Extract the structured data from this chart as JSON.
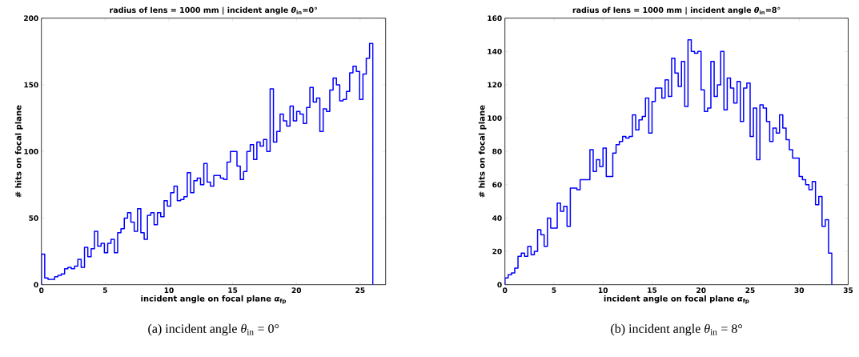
{
  "chart_data": [
    {
      "type": "histogram",
      "title": "radius of lens = 1000 mm | incident angle *θ*$_{in}$=0°",
      "xlabel": "incident angle on focal plane *α*$_{fp}$",
      "ylabel": "# hits on focal plane",
      "color": "#0000ff",
      "xlim": [
        0,
        27
      ],
      "ylim": [
        0,
        200
      ],
      "xticks": [
        0,
        5,
        10,
        15,
        20,
        25
      ],
      "yticks": [
        0,
        50,
        100,
        150,
        200
      ],
      "bins": [
        0,
        0.26,
        0.52,
        0.78,
        1.04,
        1.3,
        1.56,
        1.82,
        2.08,
        2.34,
        2.6,
        2.86,
        3.12,
        3.38,
        3.64,
        3.9,
        4.16,
        4.42,
        4.68,
        4.94,
        5.2,
        5.46,
        5.72,
        5.98,
        6.24,
        6.5,
        6.76,
        7.02,
        7.28,
        7.54,
        7.8,
        8.06,
        8.32,
        8.58,
        8.84,
        9.1,
        9.36,
        9.62,
        9.88,
        10.14,
        10.4,
        10.66,
        10.92,
        11.18,
        11.44,
        11.7,
        11.96,
        12.22,
        12.48,
        12.74,
        13,
        13.26,
        13.52,
        13.78,
        14.04,
        14.3,
        14.56,
        14.82,
        15.08,
        15.34,
        15.6,
        15.86,
        16.12,
        16.38,
        16.64,
        16.9,
        17.16,
        17.42,
        17.68,
        17.94,
        18.2,
        18.46,
        18.72,
        18.98,
        19.24,
        19.5,
        19.76,
        20.02,
        20.28,
        20.54,
        20.8,
        21.06,
        21.32,
        21.58,
        21.84,
        22.1,
        22.36,
        22.62,
        22.88,
        23.14,
        23.4,
        23.66,
        23.92,
        24.18,
        24.44,
        24.7,
        24.96,
        25.22,
        25.48,
        25.74,
        26
      ],
      "values": [
        23,
        5,
        4,
        4,
        6,
        7,
        8,
        12,
        13,
        12,
        14,
        19,
        13,
        28,
        21,
        27,
        40,
        29,
        31,
        24,
        31,
        34,
        24,
        39,
        42,
        50,
        54,
        47,
        40,
        57,
        39,
        34,
        52,
        54,
        45,
        54,
        51,
        63,
        59,
        69,
        74,
        63,
        64,
        66,
        84,
        69,
        78,
        80,
        75,
        91,
        77,
        74,
        82,
        82,
        80,
        79,
        92,
        100,
        100,
        89,
        79,
        85,
        100,
        105,
        94,
        107,
        104,
        109,
        100,
        147,
        107,
        115,
        128,
        123,
        119,
        134,
        123,
        130,
        128,
        121,
        133,
        148,
        137,
        140,
        115,
        132,
        130,
        146,
        155,
        150,
        138,
        139,
        145,
        159,
        164,
        160,
        139,
        158,
        170,
        181
      ],
      "annotations": [
        "(a) incident angle *θ*$_{in}$ = 0°"
      ]
    },
    {
      "type": "histogram",
      "title": "radius of lens = 1000 mm | incident angle *θ*$_{in}$=8°",
      "xlabel": "incident angle on focal plane *α*$_{fp}$",
      "ylabel": "# hits on focal plane",
      "color": "#0000ff",
      "xlim": [
        0,
        35
      ],
      "ylim": [
        0,
        160
      ],
      "xticks": [
        0,
        5,
        10,
        15,
        20,
        25,
        30,
        35
      ],
      "yticks": [
        0,
        20,
        40,
        60,
        80,
        100,
        120,
        140,
        160
      ],
      "bins": [
        0,
        0.333,
        0.667,
        1,
        1.333,
        1.667,
        2,
        2.333,
        2.667,
        3,
        3.333,
        3.667,
        4,
        4.333,
        4.667,
        5,
        5.333,
        5.667,
        6,
        6.333,
        6.667,
        7,
        7.333,
        7.667,
        8,
        8.333,
        8.667,
        9,
        9.333,
        9.667,
        10,
        10.333,
        10.667,
        11,
        11.333,
        11.667,
        12,
        12.333,
        12.667,
        13,
        13.333,
        13.667,
        14,
        14.333,
        14.667,
        15,
        15.333,
        15.667,
        16,
        16.333,
        16.667,
        17,
        17.333,
        17.667,
        18,
        18.333,
        18.667,
        19,
        19.333,
        19.667,
        20,
        20.333,
        20.667,
        21,
        21.333,
        21.667,
        22,
        22.333,
        22.667,
        23,
        23.333,
        23.667,
        24,
        24.333,
        24.667,
        25,
        25.333,
        25.667,
        26,
        26.333,
        26.667,
        27,
        27.333,
        27.667,
        28,
        28.333,
        28.667,
        29,
        29.333,
        29.667,
        30,
        30.333,
        30.667,
        31,
        31.333,
        31.667,
        32,
        32.333,
        32.667,
        33,
        33.333
      ],
      "values": [
        4,
        6,
        7,
        10,
        17,
        19,
        17,
        23,
        18,
        20,
        33,
        30,
        23,
        40,
        34,
        34,
        49,
        44,
        47,
        35,
        58,
        58,
        57,
        63,
        63,
        63,
        81,
        68,
        75,
        71,
        82,
        65,
        65,
        79,
        84,
        86,
        89,
        88,
        89,
        102,
        93,
        99,
        101,
        112,
        91,
        110,
        118,
        118,
        112,
        123,
        113,
        136,
        127,
        119,
        134,
        107,
        147,
        140,
        139,
        140,
        117,
        104,
        106,
        134,
        113,
        120,
        140,
        105,
        124,
        118,
        109,
        122,
        98,
        118,
        121,
        89,
        106,
        75,
        108,
        106,
        98,
        86,
        94,
        91,
        102,
        94,
        87,
        81,
        76,
        76,
        65,
        63,
        60,
        57,
        62,
        48,
        53,
        35,
        39,
        19
      ],
      "annotations": [
        "(b) incident angle *θ*$_{in}$ = 8°"
      ]
    }
  ]
}
